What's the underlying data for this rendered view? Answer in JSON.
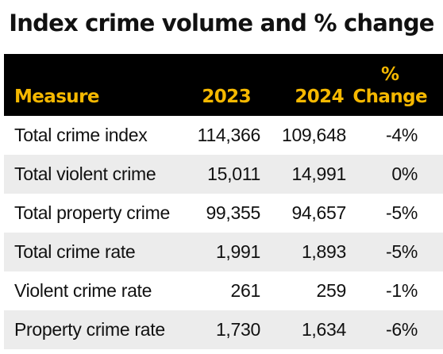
{
  "chart_data": {
    "type": "table",
    "title": "Index crime volume and % change",
    "columns": [
      "Measure",
      "2023",
      "2024",
      "%",
      "Change"
    ],
    "rows": [
      {
        "measure": "Total crime index",
        "y2023": "114,366",
        "y2024": "109,648",
        "change": "-4%"
      },
      {
        "measure": "Total violent crime",
        "y2023": "15,011",
        "y2024": "14,991",
        "change": "0%"
      },
      {
        "measure": "Total property crime",
        "y2023": "99,355",
        "y2024": "94,657",
        "change": "-5%"
      },
      {
        "measure": "Total crime rate",
        "y2023": "1,991",
        "y2024": "1,893",
        "change": "-5%"
      },
      {
        "measure": "Violent crime rate",
        "y2023": "261",
        "y2024": "259",
        "change": "-1%"
      },
      {
        "measure": "Property crime rate",
        "y2023": "1,730",
        "y2024": "1,634",
        "change": "-6%"
      }
    ],
    "colors": {
      "header_background": "#000000",
      "header_text": "#f5b800",
      "shaded_row": "#ececec"
    }
  }
}
